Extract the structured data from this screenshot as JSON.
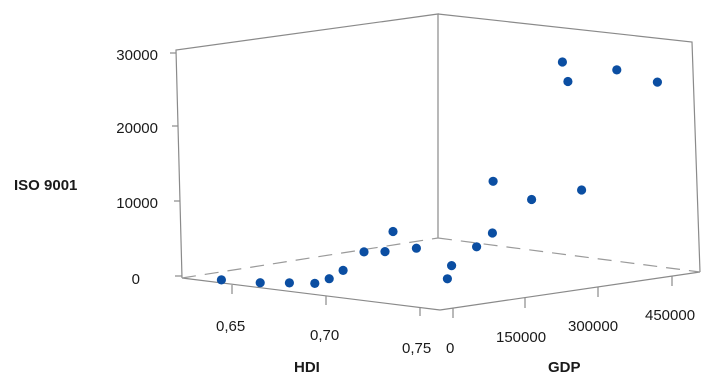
{
  "chart_data": {
    "type": "scatter3d",
    "title": "",
    "axes": {
      "x": {
        "label": "HDI",
        "ticks": [
          "0,65",
          "0,70",
          "0,75"
        ]
      },
      "y": {
        "label": "GDP",
        "ticks": [
          "0",
          "150000",
          "300000",
          "450000"
        ]
      },
      "z": {
        "label": "ISO 9001",
        "ticks": [
          "0",
          "10000",
          "20000",
          "30000"
        ]
      }
    },
    "ranges": {
      "hdi": [
        0.62,
        0.76
      ],
      "gdp": [
        0,
        520000
      ],
      "iso": [
        0,
        31000
      ]
    },
    "grid": false,
    "marker_color": "#0b4ea2",
    "points": [
      {
        "hdi": 0.64,
        "gdp": 5000,
        "iso": 300
      },
      {
        "hdi": 0.66,
        "gdp": 9000,
        "iso": 500
      },
      {
        "hdi": 0.675,
        "gdp": 12000,
        "iso": 900
      },
      {
        "hdi": 0.688,
        "gdp": 15000,
        "iso": 1200
      },
      {
        "hdi": 0.695,
        "gdp": 18000,
        "iso": 2000
      },
      {
        "hdi": 0.702,
        "gdp": 20000,
        "iso": 3300
      },
      {
        "hdi": 0.712,
        "gdp": 25000,
        "iso": 6000
      },
      {
        "hdi": 0.722,
        "gdp": 30000,
        "iso": 6300
      },
      {
        "hdi": 0.725,
        "gdp": 35000,
        "iso": 9000
      },
      {
        "hdi": 0.735,
        "gdp": 45000,
        "iso": 7000
      },
      {
        "hdi": 0.745,
        "gdp": 70000,
        "iso": 3000
      },
      {
        "hdi": 0.75,
        "gdp": 60000,
        "iso": 5000
      },
      {
        "hdi": 0.75,
        "gdp": 110000,
        "iso": 7000
      },
      {
        "hdi": 0.745,
        "gdp": 160000,
        "iso": 8200
      },
      {
        "hdi": 0.74,
        "gdp": 180000,
        "iso": 14700
      },
      {
        "hdi": 0.75,
        "gdp": 220000,
        "iso": 12200
      },
      {
        "hdi": 0.75,
        "gdp": 320000,
        "iso": 12500
      },
      {
        "hdi": 0.748,
        "gdp": 300000,
        "iso": 27000
      },
      {
        "hdi": 0.745,
        "gdp": 300000,
        "iso": 29500
      },
      {
        "hdi": 0.742,
        "gdp": 420000,
        "iso": 27200
      },
      {
        "hdi": 0.745,
        "gdp": 490000,
        "iso": 25000
      }
    ]
  }
}
